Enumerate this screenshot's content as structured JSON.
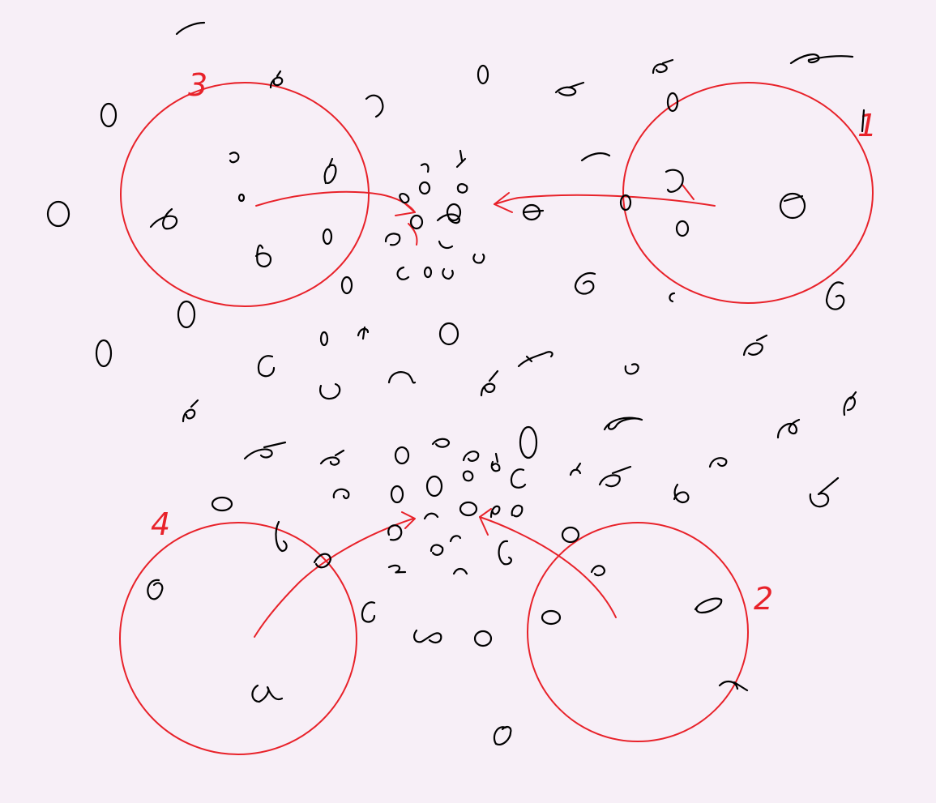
{
  "sketch": {
    "ink_color": "#000000",
    "annotation_color": "#e8222a",
    "background_color": "#f7eff7",
    "regions": [
      {
        "label": "3"
      },
      {
        "label": "1"
      },
      {
        "label": "4"
      },
      {
        "label": "2"
      }
    ]
  }
}
